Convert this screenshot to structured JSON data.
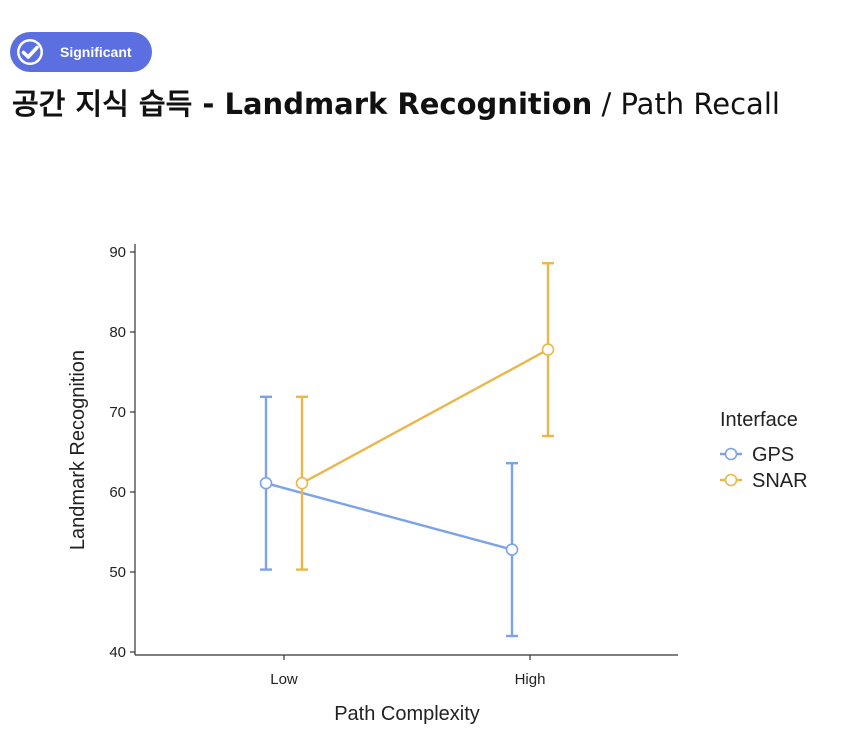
{
  "badge": {
    "label": "Significant",
    "icon": "check-circle-icon",
    "color": "#5b6fe0"
  },
  "title": {
    "main": "공간 지식 습득 - Landmark Recognition",
    "separator": " / ",
    "secondary": "Path Recall"
  },
  "chart_data": {
    "type": "line",
    "categories": [
      "Low",
      "High"
    ],
    "xlabel": "Path Complexity",
    "ylabel": "Landmark Recognition",
    "ylim": [
      40,
      90
    ],
    "yticks": [
      40,
      50,
      60,
      70,
      80,
      90
    ],
    "grid": false,
    "legend": {
      "title": "Interface",
      "placement": "right"
    },
    "series": [
      {
        "name": "GPS",
        "color": "#7ba3e8",
        "values": [
          61.1,
          52.8
        ],
        "error_low": [
          50.3,
          42.0
        ],
        "error_high": [
          71.9,
          63.6
        ]
      },
      {
        "name": "SNAR",
        "color": "#e8b84d",
        "values": [
          61.1,
          77.8
        ],
        "error_low": [
          50.3,
          67.0
        ],
        "error_high": [
          71.9,
          88.6
        ]
      }
    ]
  }
}
